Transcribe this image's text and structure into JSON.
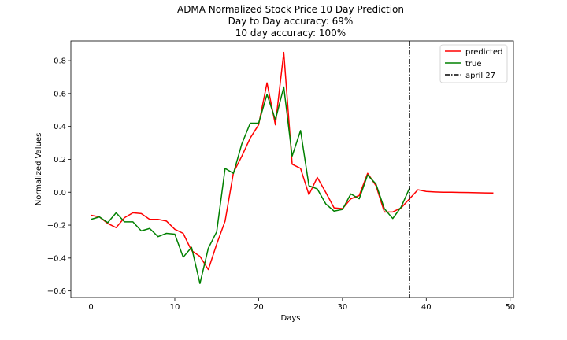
{
  "chart_data": {
    "type": "line",
    "title": "ADMA Normalized Stock Price 10 Day Prediction",
    "subtitle_lines": [
      "Day to Day accuracy: 69%",
      "10 day accuracy: 100%"
    ],
    "xlabel": "Days",
    "ylabel": "Normalized Values",
    "xlim": [
      -2.4,
      50.4
    ],
    "ylim": [
      -0.64,
      0.92
    ],
    "xticks": [
      0,
      10,
      20,
      30,
      40,
      50
    ],
    "yticks": [
      -0.6,
      -0.4,
      -0.2,
      0.0,
      0.2,
      0.4,
      0.6,
      0.8
    ],
    "ytick_labels": [
      "−0.6",
      "−0.4",
      "−0.2",
      "0.0",
      "0.2",
      "0.4",
      "0.6",
      "0.8"
    ],
    "grid": false,
    "legend_position": "top-right",
    "series": [
      {
        "name": "predicted",
        "color": "#ff0000",
        "x": [
          0,
          1,
          2,
          3,
          4,
          5,
          6,
          7,
          8,
          9,
          10,
          11,
          12,
          13,
          14,
          15,
          16,
          17,
          18,
          19,
          20,
          21,
          22,
          23,
          24,
          25,
          26,
          27,
          28,
          29,
          30,
          31,
          32,
          33,
          34,
          35,
          36,
          37,
          38,
          39,
          40,
          41,
          42,
          43,
          44,
          45,
          46,
          47,
          48
        ],
        "y": [
          -0.14,
          -0.15,
          -0.19,
          -0.215,
          -0.155,
          -0.125,
          -0.13,
          -0.165,
          -0.165,
          -0.175,
          -0.225,
          -0.25,
          -0.355,
          -0.39,
          -0.47,
          -0.315,
          -0.175,
          0.12,
          0.22,
          0.33,
          0.41,
          0.665,
          0.41,
          0.85,
          0.17,
          0.145,
          -0.015,
          0.09,
          0.0,
          -0.095,
          -0.1,
          -0.04,
          -0.02,
          0.115,
          0.04,
          -0.12,
          -0.12,
          -0.095,
          -0.04,
          0.015,
          0.005,
          0.002,
          0.0,
          0.0,
          -0.001,
          -0.002,
          -0.003,
          -0.004,
          -0.005
        ]
      },
      {
        "name": "true",
        "color": "#008000",
        "x": [
          0,
          1,
          2,
          3,
          4,
          5,
          6,
          7,
          8,
          9,
          10,
          11,
          12,
          13,
          14,
          15,
          16,
          17,
          18,
          19,
          20,
          21,
          22,
          23,
          24,
          25,
          26,
          27,
          28,
          29,
          30,
          31,
          32,
          33,
          34,
          35,
          36,
          37,
          38
        ],
        "y": [
          -0.165,
          -0.15,
          -0.185,
          -0.125,
          -0.18,
          -0.18,
          -0.235,
          -0.22,
          -0.27,
          -0.25,
          -0.255,
          -0.395,
          -0.335,
          -0.555,
          -0.34,
          -0.24,
          0.145,
          0.115,
          0.295,
          0.42,
          0.42,
          0.595,
          0.44,
          0.64,
          0.22,
          0.375,
          0.04,
          0.02,
          -0.07,
          -0.115,
          -0.105,
          -0.01,
          -0.04,
          0.105,
          0.05,
          -0.1,
          -0.16,
          -0.09,
          0.025
        ]
      }
    ],
    "vline": {
      "name": "april 27",
      "x": 38,
      "color": "#000000",
      "style": "dashdot"
    }
  }
}
